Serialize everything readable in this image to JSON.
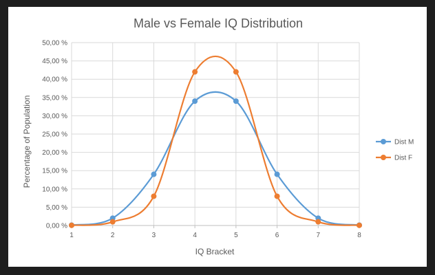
{
  "chart_data": {
    "type": "line",
    "title": "Male vs Female IQ Distribution",
    "xlabel": "IQ Bracket",
    "ylabel": "Percentage of Population",
    "x": [
      1,
      2,
      3,
      4,
      5,
      6,
      7,
      8
    ],
    "xlim": [
      1,
      8
    ],
    "ylim": [
      0,
      50
    ],
    "y_ticks": [
      "0,00 %",
      "5,00 %",
      "10,00 %",
      "15,00 %",
      "20,00 %",
      "25,00 %",
      "30,00 %",
      "35,00 %",
      "40,00 %",
      "45,00 %",
      "50,00 %"
    ],
    "x_ticks": [
      "1",
      "2",
      "3",
      "4",
      "5",
      "6",
      "7",
      "8"
    ],
    "grid": true,
    "legend_position": "right",
    "smooth": true,
    "series": [
      {
        "name": "Dist M",
        "color": "#5b9bd5",
        "values": [
          0.1,
          2.0,
          14.0,
          34.0,
          34.0,
          14.0,
          2.0,
          0.1
        ]
      },
      {
        "name": "Dist F",
        "color": "#ed7d31",
        "values": [
          0.05,
          1.0,
          8.0,
          42.0,
          42.0,
          8.0,
          1.0,
          0.05
        ]
      }
    ]
  }
}
